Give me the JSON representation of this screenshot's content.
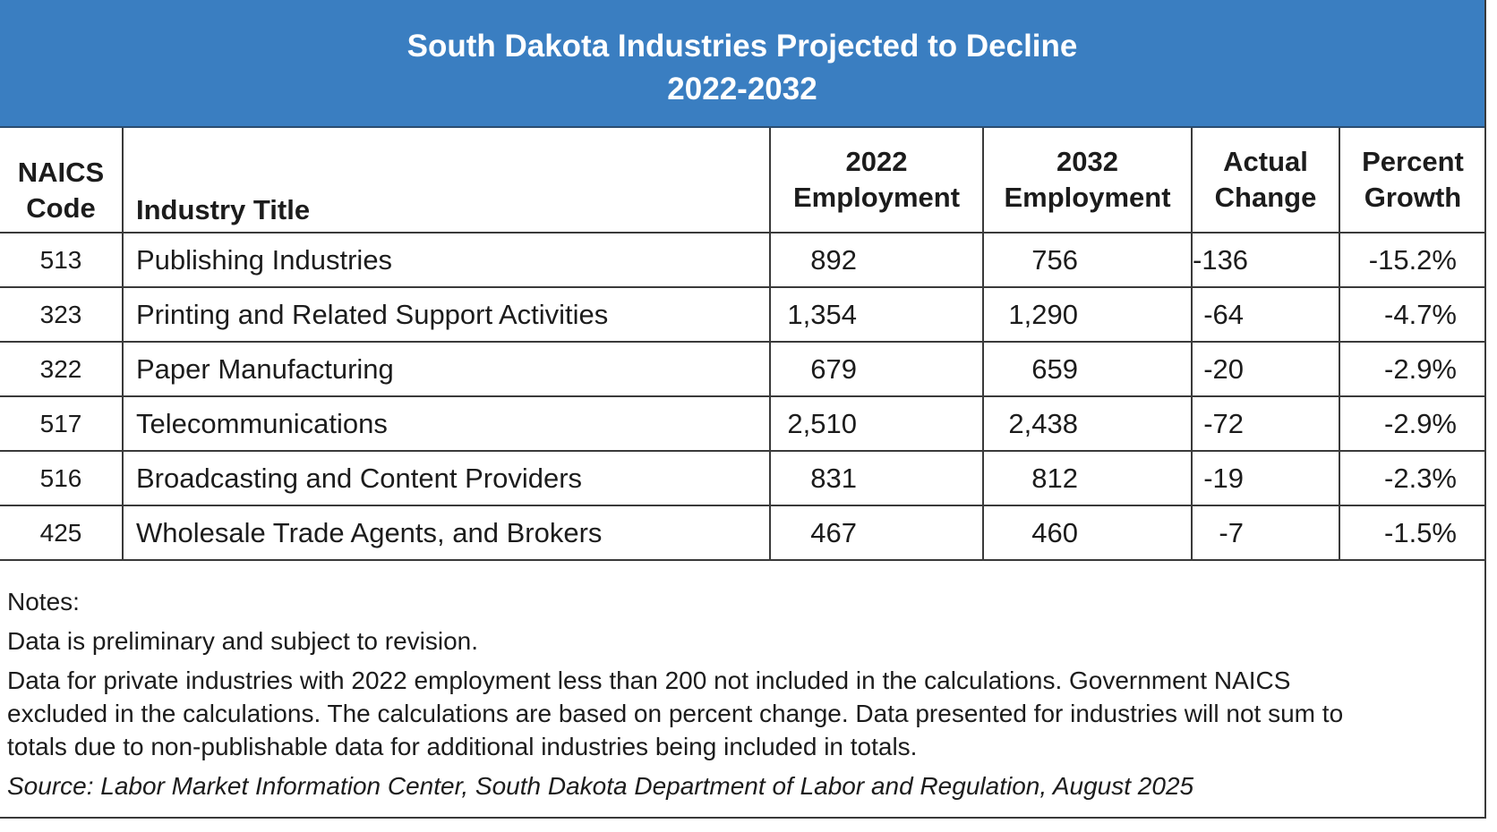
{
  "header": {
    "title_line1": "South Dakota Industries Projected to Decline",
    "title_line2": "2022-2032",
    "background_color": "#3a7ec1"
  },
  "table": {
    "columns": {
      "code_line1": "NAICS",
      "code_line2": "Code",
      "title": "Industry Title",
      "emp2022_line1": "2022",
      "emp2022_line2": "Employment",
      "emp2032_line1": "2032",
      "emp2032_line2": "Employment",
      "change_line1": "Actual",
      "change_line2": "Change",
      "pct_line1": "Percent",
      "pct_line2": "Growth"
    },
    "rows": [
      {
        "code": "513",
        "title": "Publishing Industries",
        "emp2022": "892",
        "emp2032": "756",
        "change": "-136",
        "pct": "-15.2%"
      },
      {
        "code": "323",
        "title": "Printing and Related Support Activities",
        "emp2022": "1,354",
        "emp2032": "1,290",
        "change": "-64",
        "pct": "-4.7%"
      },
      {
        "code": "322",
        "title": "Paper Manufacturing",
        "emp2022": "679",
        "emp2032": "659",
        "change": "-20",
        "pct": "-2.9%"
      },
      {
        "code": "517",
        "title": "Telecommunications",
        "emp2022": "2,510",
        "emp2032": "2,438",
        "change": "-72",
        "pct": "-2.9%"
      },
      {
        "code": "516",
        "title": "Broadcasting and Content Providers",
        "emp2022": "831",
        "emp2032": "812",
        "change": "-19",
        "pct": "-2.3%"
      },
      {
        "code": "425",
        "title": "Wholesale Trade Agents, and Brokers",
        "emp2022": "467",
        "emp2032": "460",
        "change": "-7",
        "pct": "-1.5%"
      }
    ]
  },
  "notes": {
    "heading": "Notes:",
    "note1": "Data is preliminary and subject to revision.",
    "note2_line1": "Data for private industries with 2022 employment less than 200 not included in the calculations. Government NAICS",
    "note2_line2": "excluded in the calculations. The calculations are based on percent change. Data presented for industries will not sum to",
    "note2_line3": "totals due to non-publishable data for additional industries being included in totals.",
    "source": "Source: Labor Market Information Center, South Dakota Department of Labor and Regulation, August 2025"
  }
}
